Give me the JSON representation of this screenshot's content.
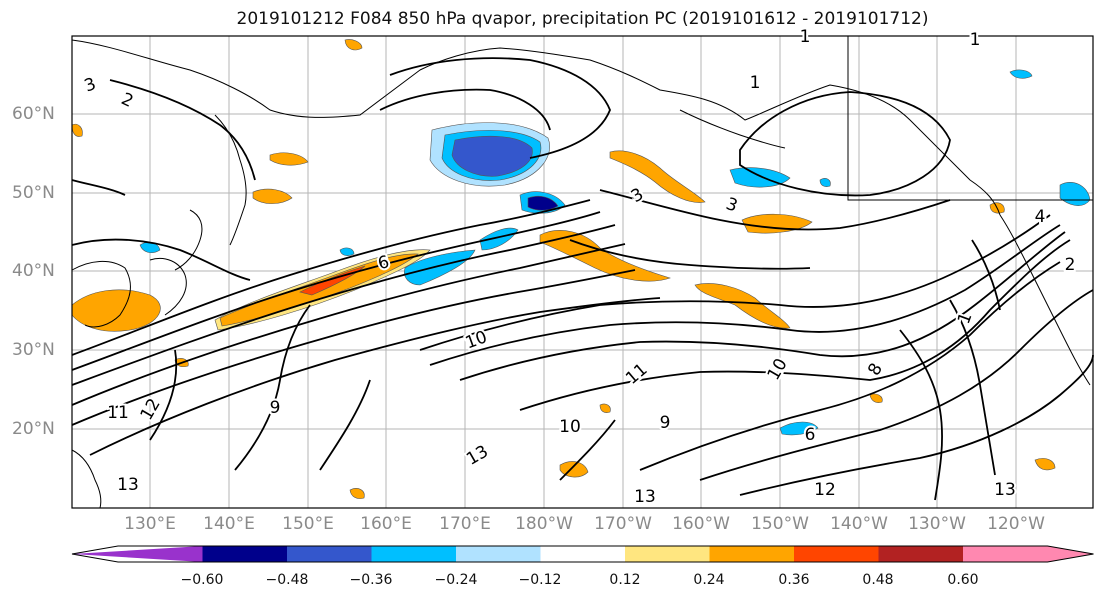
{
  "title": "2019101212 F084 850 hPa qvapor, precipitation PC (2019101612 - 2019101712)",
  "lat_labels": [
    "60°N",
    "50°N",
    "40°N",
    "30°N",
    "20°N"
  ],
  "lon_labels": [
    "130°E",
    "140°E",
    "150°E",
    "160°E",
    "170°E",
    "180°W",
    "170°W",
    "160°W",
    "150°W",
    "140°W",
    "130°W",
    "120°W"
  ],
  "colorbar": {
    "colors": [
      "#9932cc",
      "#00008b",
      "#3457cc",
      "#00bfff",
      "#b0e2ff",
      "#ffffff",
      "#ffe680",
      "#ffa500",
      "#ff4500",
      "#b22222",
      "#ff88b0"
    ],
    "tick_labels": [
      "−0.60",
      "−0.48",
      "−0.36",
      "−0.24",
      "−0.12",
      "0.12",
      "0.24",
      "0.36",
      "0.48",
      "0.60"
    ]
  },
  "contour_labels": [
    {
      "text": "1"
    },
    {
      "text": "1"
    },
    {
      "text": "1"
    },
    {
      "text": "2"
    },
    {
      "text": "3"
    },
    {
      "text": "3"
    },
    {
      "text": "3"
    },
    {
      "text": "4"
    },
    {
      "text": "2"
    },
    {
      "text": "6"
    },
    {
      "text": "10"
    },
    {
      "text": "11"
    },
    {
      "text": "12"
    },
    {
      "text": "9"
    },
    {
      "text": "13"
    },
    {
      "text": "10"
    },
    {
      "text": "13"
    },
    {
      "text": "11"
    },
    {
      "text": "9"
    },
    {
      "text": "10"
    },
    {
      "text": "12"
    },
    {
      "text": "13"
    },
    {
      "text": "13"
    },
    {
      "text": "8"
    },
    {
      "text": "6"
    },
    {
      "text": "1"
    }
  ]
}
